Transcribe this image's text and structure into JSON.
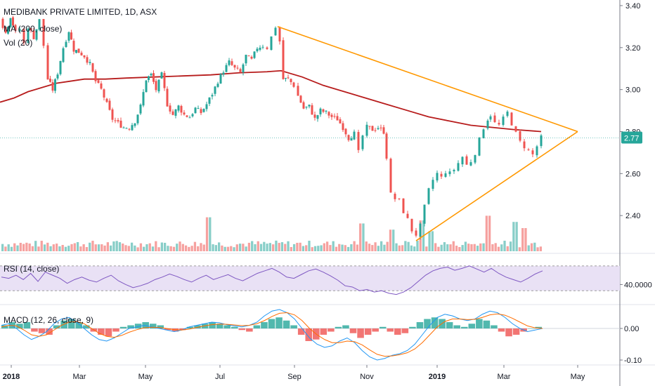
{
  "header": {
    "symbol_title": "MEDIBANK PRIVATE LIMITED, 1D, ASX"
  },
  "legends": {
    "ma": "MA (200, close)",
    "vol": "Vol (20)",
    "rsi": "RSI (14, close)",
    "macd": "MACD (12, 26, close, 9)"
  },
  "colors": {
    "up": "#26a69a",
    "down": "#ef5350",
    "ma": "#b71c1c",
    "trend": "#ff9800",
    "rsi": "#7e57c2",
    "rsi_band": "#e9e1f5",
    "macd_line": "#2196f3",
    "signal_line": "#ff6d00",
    "price_badge": "#26a69a"
  },
  "chart_data": [
    {
      "type": "candlestick",
      "title": "MEDIBANK PRIVATE LIMITED, 1D, ASX",
      "x_ticks": [
        "2018",
        "Mar",
        "May",
        "Jul",
        "Sep",
        "Nov",
        "2019",
        "Mar",
        "May"
      ],
      "y_ticks": [
        "3.40",
        "3.20",
        "3.00",
        "2.80",
        "2.60",
        "2.40"
      ],
      "ylim": [
        2.23,
        3.42
      ],
      "last_price": "2.77",
      "price_path": [
        [
          0,
          3.34
        ],
        [
          8,
          3.27
        ],
        [
          15,
          3.35
        ],
        [
          22,
          3.27
        ],
        [
          28,
          3.29
        ],
        [
          34,
          3.22
        ],
        [
          40,
          3.3
        ],
        [
          48,
          3.25
        ],
        [
          56,
          3.33
        ],
        [
          62,
          3.21
        ],
        [
          68,
          3.05
        ],
        [
          75,
          3.0
        ],
        [
          82,
          3.08
        ],
        [
          90,
          3.2
        ],
        [
          98,
          3.28
        ],
        [
          105,
          3.19
        ],
        [
          112,
          3.18
        ],
        [
          120,
          3.16
        ],
        [
          128,
          3.12
        ],
        [
          136,
          3.04
        ],
        [
          144,
          3.0
        ],
        [
          152,
          2.93
        ],
        [
          160,
          2.86
        ],
        [
          168,
          2.84
        ],
        [
          176,
          2.82
        ],
        [
          184,
          2.82
        ],
        [
          192,
          2.85
        ],
        [
          200,
          2.92
        ],
        [
          208,
          3.05
        ],
        [
          215,
          3.07
        ],
        [
          222,
          3.0
        ],
        [
          230,
          3.07
        ],
        [
          238,
          2.93
        ],
        [
          246,
          2.88
        ],
        [
          254,
          2.92
        ],
        [
          262,
          2.88
        ],
        [
          270,
          2.87
        ],
        [
          278,
          2.91
        ],
        [
          286,
          2.89
        ],
        [
          294,
          2.93
        ],
        [
          302,
          2.98
        ],
        [
          310,
          3.04
        ],
        [
          318,
          3.09
        ],
        [
          326,
          3.13
        ],
        [
          334,
          3.1
        ],
        [
          342,
          3.08
        ],
        [
          350,
          3.16
        ],
        [
          358,
          3.14
        ],
        [
          366,
          3.2
        ],
        [
          374,
          3.21
        ],
        [
          380,
          3.2
        ],
        [
          386,
          3.25
        ],
        [
          392,
          3.3
        ],
        [
          398,
          3.23
        ],
        [
          403,
          3.05
        ],
        [
          410,
          3.05
        ],
        [
          418,
          3.02
        ],
        [
          424,
          2.97
        ],
        [
          432,
          2.91
        ],
        [
          440,
          2.92
        ],
        [
          448,
          2.86
        ],
        [
          456,
          2.9
        ],
        [
          464,
          2.89
        ],
        [
          472,
          2.87
        ],
        [
          480,
          2.86
        ],
        [
          488,
          2.82
        ],
        [
          496,
          2.77
        ],
        [
          504,
          2.79
        ],
        [
          510,
          2.7
        ],
        [
          516,
          2.78
        ],
        [
          522,
          2.82
        ],
        [
          530,
          2.81
        ],
        [
          538,
          2.82
        ],
        [
          546,
          2.8
        ],
        [
          550,
          2.68
        ],
        [
          556,
          2.5
        ],
        [
          562,
          2.48
        ],
        [
          568,
          2.47
        ],
        [
          574,
          2.42
        ],
        [
          580,
          2.38
        ],
        [
          586,
          2.33
        ],
        [
          592,
          2.31
        ],
        [
          598,
          2.35
        ],
        [
          604,
          2.44
        ],
        [
          610,
          2.52
        ],
        [
          616,
          2.57
        ],
        [
          622,
          2.6
        ],
        [
          628,
          2.58
        ],
        [
          634,
          2.61
        ],
        [
          640,
          2.6
        ],
        [
          646,
          2.62
        ],
        [
          652,
          2.65
        ],
        [
          658,
          2.68
        ],
        [
          664,
          2.64
        ],
        [
          670,
          2.66
        ],
        [
          676,
          2.7
        ],
        [
          682,
          2.76
        ],
        [
          688,
          2.82
        ],
        [
          694,
          2.86
        ],
        [
          698,
          2.88
        ],
        [
          704,
          2.84
        ],
        [
          710,
          2.83
        ],
        [
          716,
          2.86
        ],
        [
          722,
          2.89
        ],
        [
          728,
          2.84
        ],
        [
          734,
          2.79
        ],
        [
          740,
          2.75
        ],
        [
          746,
          2.73
        ],
        [
          752,
          2.71
        ],
        [
          758,
          2.69
        ],
        [
          764,
          2.73
        ],
        [
          770,
          2.77
        ]
      ],
      "ma200_path": [
        [
          0,
          2.94
        ],
        [
          20,
          2.96
        ],
        [
          40,
          2.99
        ],
        [
          60,
          3.01
        ],
        [
          80,
          3.03
        ],
        [
          100,
          3.04
        ],
        [
          120,
          3.05
        ],
        [
          150,
          3.05
        ],
        [
          180,
          3.055
        ],
        [
          220,
          3.06
        ],
        [
          260,
          3.065
        ],
        [
          300,
          3.07
        ],
        [
          340,
          3.08
        ],
        [
          380,
          3.085
        ],
        [
          400,
          3.09
        ],
        [
          430,
          3.06
        ],
        [
          460,
          3.02
        ],
        [
          490,
          2.99
        ],
        [
          520,
          2.96
        ],
        [
          550,
          2.93
        ],
        [
          580,
          2.9
        ],
        [
          610,
          2.87
        ],
        [
          640,
          2.85
        ],
        [
          670,
          2.83
        ],
        [
          700,
          2.82
        ],
        [
          730,
          2.81
        ],
        [
          770,
          2.8
        ]
      ],
      "trendlines": [
        [
          [
            395,
            3.3
          ],
          [
            822,
            2.8
          ]
        ],
        [
          [
            592,
            2.28
          ],
          [
            822,
            2.8
          ]
        ]
      ],
      "volume": {
        "bars": 180,
        "x_range": [
          2,
          772
        ],
        "scale": "relative",
        "spikes": [
          [
            294,
            2.2
          ],
          [
            515,
            1.8
          ],
          [
            598,
            2.0
          ],
          [
            694,
            2.3
          ],
          [
            732,
            1.9
          ],
          [
            745,
            1.5
          ],
          [
            556,
            1.4
          ],
          [
            610,
            1.3
          ]
        ]
      }
    },
    {
      "type": "line",
      "title": "RSI (14, close)",
      "y_ticks": [
        "40.0000"
      ],
      "band": [
        30,
        70
      ],
      "ylim": [
        10,
        80
      ],
      "x_range": [
        2,
        772
      ],
      "values": [
        52,
        50,
        55,
        48,
        58,
        45,
        60,
        55,
        50,
        42,
        48,
        52,
        47,
        44,
        50,
        55,
        46,
        40,
        35,
        38,
        42,
        48,
        52,
        57,
        53,
        48,
        44,
        50,
        55,
        48,
        52,
        56,
        50,
        46,
        52,
        58,
        62,
        66,
        60,
        52,
        50,
        56,
        62,
        65,
        60,
        54,
        47,
        38,
        36,
        30,
        32,
        28,
        30,
        26,
        24,
        28,
        35,
        45,
        55,
        62,
        66,
        68,
        63,
        66,
        70,
        65,
        60,
        66,
        58,
        52,
        48,
        44,
        50,
        57,
        62
      ]
    },
    {
      "type": "bar",
      "title": "MACD (12, 26, close, 9)",
      "y_ticks": [
        "0.00",
        "-0.10"
      ],
      "ylim": [
        -0.115,
        0.07
      ],
      "x_range": [
        2,
        772
      ],
      "histogram": [
        0.01,
        0.02,
        0.015,
        0.02,
        -0.01,
        -0.015,
        -0.02,
        0.01,
        0.025,
        0.03,
        0.02,
        0.01,
        -0.01,
        -0.02,
        -0.025,
        -0.01,
        0.005,
        0.01,
        0.015,
        0.02,
        0.015,
        0.01,
        -0.005,
        -0.01,
        -0.005,
        0.005,
        0.01,
        0.015,
        0.02,
        0.015,
        0.01,
        0.005,
        -0.005,
        -0.01,
        0.01,
        0.02,
        0.03,
        0.035,
        0.025,
        0.01,
        -0.02,
        -0.04,
        -0.035,
        -0.02,
        -0.01,
        0.005,
        0.01,
        -0.015,
        -0.03,
        -0.02,
        -0.01,
        0.005,
        -0.01,
        -0.02,
        -0.015,
        0.005,
        0.02,
        0.03,
        0.035,
        0.03,
        0.02,
        0.01,
        0.005,
        0.015,
        0.03,
        0.025,
        0.01,
        -0.01,
        -0.025,
        -0.02,
        -0.01,
        0.0,
        0.005
      ],
      "macd_line": [
        0.01,
        0.015,
        0.0,
        -0.02,
        -0.035,
        -0.025,
        -0.01,
        0.015,
        0.03,
        0.035,
        0.02,
        0.0,
        -0.02,
        -0.035,
        -0.04,
        -0.03,
        -0.015,
        0.0,
        0.005,
        0.01,
        0.005,
        0.0,
        -0.005,
        -0.01,
        -0.005,
        0.005,
        0.01,
        0.015,
        0.02,
        0.018,
        0.012,
        0.008,
        0.005,
        0.01,
        0.02,
        0.04,
        0.055,
        0.06,
        0.05,
        0.03,
        0.0,
        -0.03,
        -0.05,
        -0.06,
        -0.055,
        -0.04,
        -0.03,
        -0.045,
        -0.07,
        -0.09,
        -0.1,
        -0.095,
        -0.085,
        -0.08,
        -0.07,
        -0.05,
        -0.02,
        0.01,
        0.035,
        0.045,
        0.04,
        0.03,
        0.025,
        0.03,
        0.045,
        0.055,
        0.05,
        0.035,
        0.015,
        0.0,
        -0.01,
        -0.005,
        0.0
      ],
      "signal_line": [
        0.005,
        0.01,
        0.008,
        -0.005,
        -0.02,
        -0.025,
        -0.02,
        -0.005,
        0.01,
        0.02,
        0.022,
        0.015,
        0.0,
        -0.015,
        -0.025,
        -0.028,
        -0.022,
        -0.012,
        -0.004,
        0.002,
        0.004,
        0.003,
        0.0,
        -0.004,
        -0.005,
        -0.002,
        0.003,
        0.008,
        0.012,
        0.014,
        0.013,
        0.011,
        0.009,
        0.01,
        0.015,
        0.025,
        0.038,
        0.048,
        0.05,
        0.043,
        0.025,
        0.0,
        -0.02,
        -0.035,
        -0.045,
        -0.045,
        -0.04,
        -0.042,
        -0.052,
        -0.068,
        -0.082,
        -0.088,
        -0.087,
        -0.083,
        -0.077,
        -0.065,
        -0.045,
        -0.02,
        0.005,
        0.022,
        0.03,
        0.03,
        0.028,
        0.029,
        0.035,
        0.043,
        0.046,
        0.042,
        0.032,
        0.02,
        0.008,
        0.002,
        0.0
      ]
    }
  ]
}
